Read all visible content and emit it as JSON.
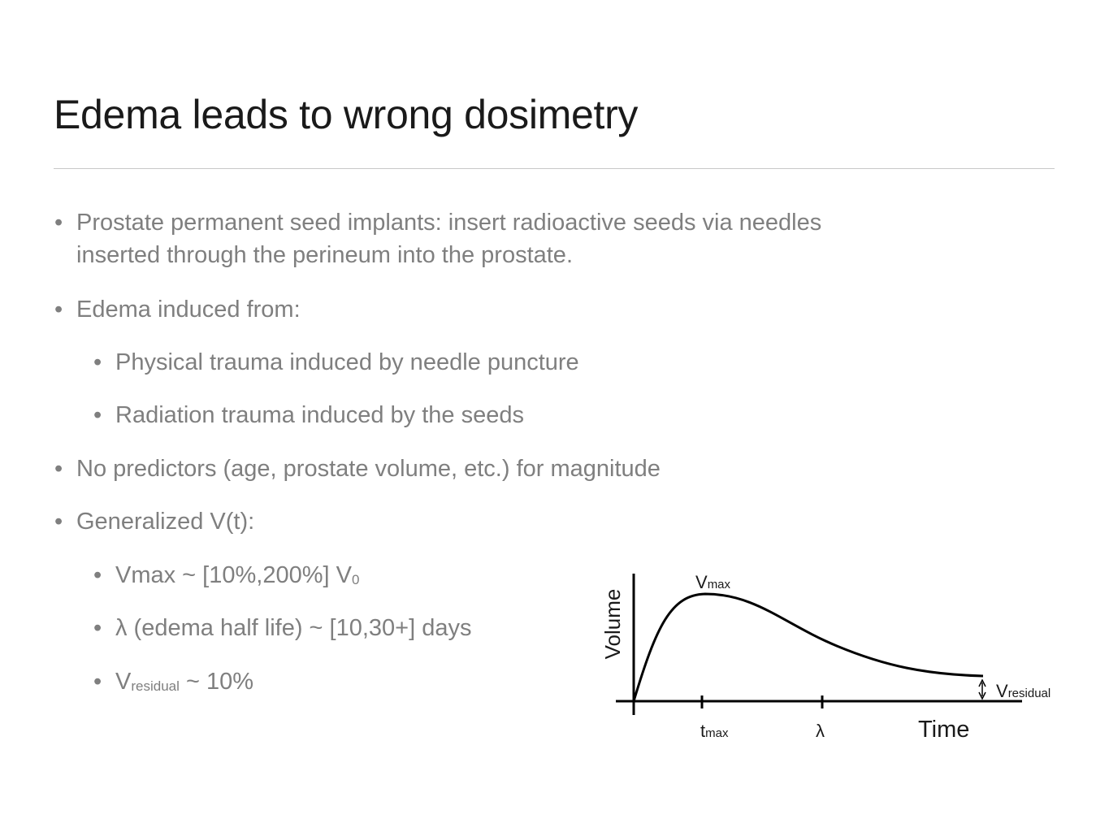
{
  "slide": {
    "title": "Edema leads to wrong dosimetry"
  },
  "bullets": {
    "b1_line1": "Prostate permanent seed implants: insert radioactive seeds via needles",
    "b1_line2": "inserted through the perineum into the prostate.",
    "b2": "Edema induced from:",
    "b2a": "Physical trauma induced by needle puncture",
    "b2b": "Radiation trauma induced by the seeds",
    "b3": "No predictors (age, prostate volume, etc.) for magnitude",
    "b4": "Generalized V(t):",
    "b4a_main": "Vmax ~ [10%,200%] V",
    "b4a_sub": "0",
    "b4b": "λ (edema half life) ~ [10,30+] days",
    "b4c_V": "V",
    "b4c_sub": "residual",
    "b4c_rest": " ~ 10%",
    "marker": "•"
  },
  "diagram": {
    "ylabel": "Volume",
    "xlabel": "Time",
    "vmax_V": "V",
    "vmax_sub": "max",
    "tmax_t": "t",
    "tmax_sub": "max",
    "lambda": "λ",
    "vres_V": "V",
    "vres_sub": "residual"
  }
}
